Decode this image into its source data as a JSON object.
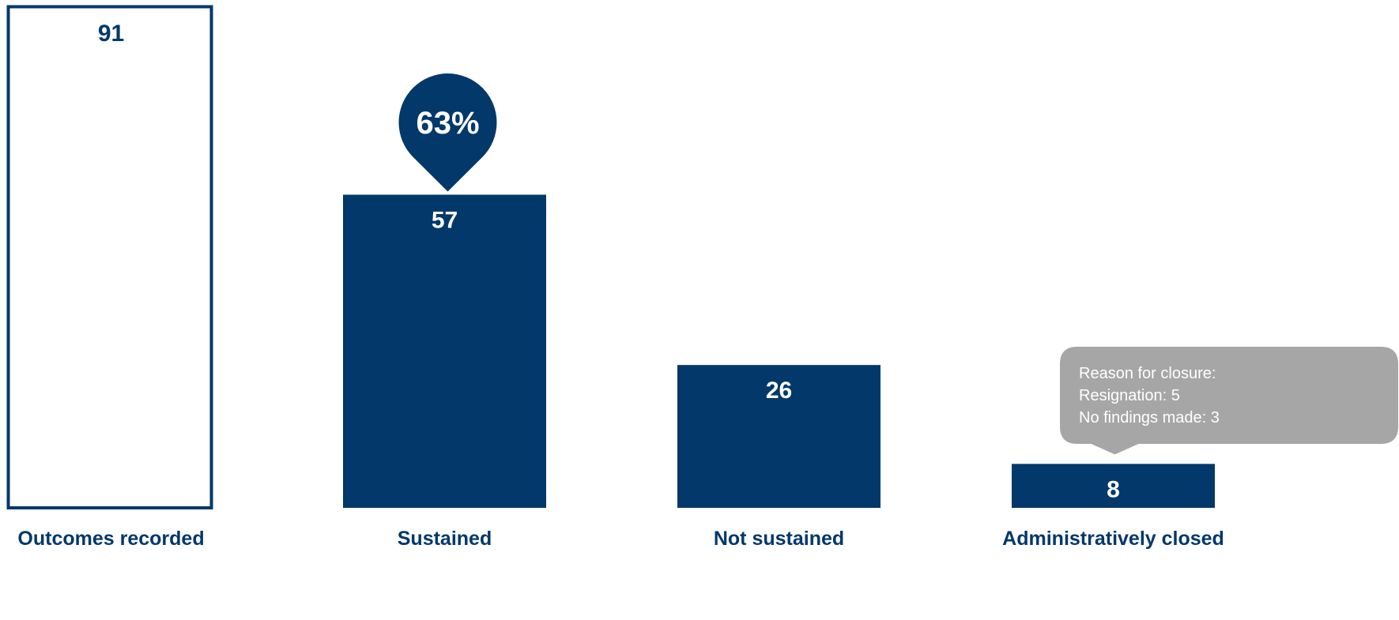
{
  "chart_data": {
    "type": "bar",
    "categories": [
      "Outcomes recorded",
      "Sustained",
      "Not sustained",
      "Administratively closed"
    ],
    "values": [
      91,
      57,
      26,
      8
    ],
    "value_labels": [
      "91",
      "57",
      "26",
      "8"
    ],
    "ylim": [
      0,
      91
    ],
    "grid": false,
    "legend": "none",
    "title": "",
    "xlabel": "",
    "ylabel": "",
    "bar_styles": [
      "outline",
      "filled",
      "filled",
      "filled"
    ],
    "colors": {
      "bar": "#02386a",
      "callout": "#a6a6a6",
      "value_on_fill": "#ffffff",
      "value_on_outline": "#02386a"
    },
    "annotations": {
      "percent_marker": {
        "category": "Sustained",
        "label": "63%"
      },
      "closure_callout": {
        "category": "Administratively closed",
        "lines": [
          "Reason for closure:",
          "Resignation: 5",
          "No findings made: 3"
        ]
      }
    }
  }
}
